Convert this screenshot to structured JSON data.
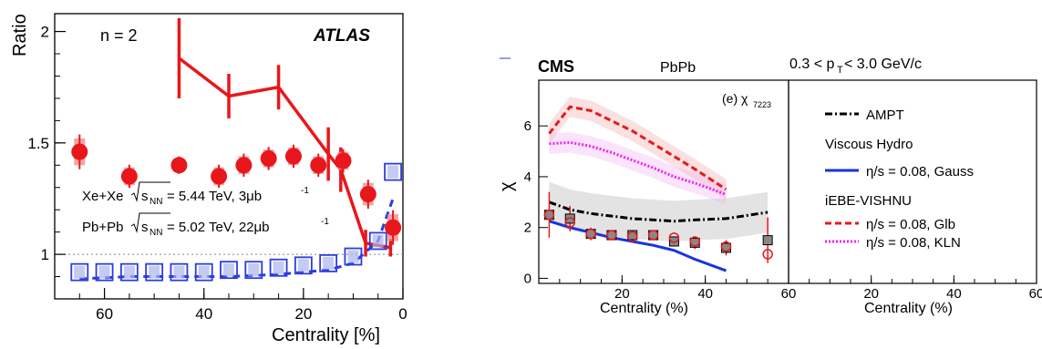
{
  "chart_data": [
    {
      "type": "scatter",
      "panel": "left",
      "experiment": "ATLAS",
      "harmonic_label": "n = 2",
      "ylabel": "Ratio",
      "xlabel": "Centrality [%]",
      "xlim": [
        70,
        0
      ],
      "ylim": [
        0.8,
        2.08
      ],
      "x_ticks": [
        "60",
        "40",
        "20",
        "0"
      ],
      "y_ticks": [
        "1",
        "1.5",
        "2"
      ],
      "reference_line": 1,
      "legend_lines": [
        {
          "prefix": "Xe+Xe",
          "sqrt": "s",
          "sub": "NN",
          "value": " = 5.44 TeV, 3μb",
          "sup": "-1"
        },
        {
          "prefix": "Pb+Pb",
          "sqrt": "s",
          "sub": "NN",
          "value": " = 5.02 TeV, 22μb",
          "sup": "-1"
        }
      ],
      "series": [
        {
          "color": "#e8171b",
          "marker": "circle",
          "x": [
            65,
            55,
            45,
            37,
            32,
            27,
            22,
            17,
            12,
            7,
            2
          ],
          "y": [
            1.46,
            1.35,
            1.4,
            1.35,
            1.4,
            1.43,
            1.44,
            1.4,
            1.42,
            1.27,
            1.12
          ],
          "err": [
            0.06,
            0.04,
            0.03,
            0.04,
            0.04,
            0.04,
            0.04,
            0.04,
            0.04,
            0.05,
            0.06
          ]
        },
        {
          "color": "#e8171b",
          "marker": "line",
          "x": [
            45,
            35,
            25,
            15,
            12.5,
            7.5,
            2.5
          ],
          "y": [
            1.88,
            1.71,
            1.75,
            1.45,
            1.38,
            1.05,
            1.03
          ],
          "err": [
            0.18,
            0.1,
            0.1,
            0.12,
            0.1,
            0.06,
            0.04
          ]
        },
        {
          "color": "#2b3ce0",
          "marker": "open-square",
          "x": [
            65,
            60,
            55,
            50,
            45,
            40,
            35,
            30,
            25,
            20,
            15,
            10,
            5,
            2
          ],
          "y": [
            0.92,
            0.92,
            0.92,
            0.92,
            0.92,
            0.92,
            0.93,
            0.93,
            0.94,
            0.95,
            0.96,
            0.99,
            1.06,
            1.37
          ]
        },
        {
          "color": "#2b3ce0",
          "marker": "dashed-line",
          "x": [
            65,
            55,
            45,
            35,
            25,
            20,
            15,
            10,
            5,
            2
          ],
          "y": [
            0.89,
            0.9,
            0.9,
            0.9,
            0.91,
            0.92,
            0.93,
            0.96,
            1.06,
            1.25
          ]
        }
      ]
    },
    {
      "type": "line",
      "panel": "right",
      "experiment": "CMS",
      "system": "PbPb",
      "pt_range": "0.3 < p",
      "pt_sub": "T",
      "pt_rest": " < 3.0 GeV/c",
      "panel_label": "(e) χ",
      "panel_label_sub": "7223",
      "ylabel": "χ",
      "xlabel": "Centrality (%)",
      "xlim": [
        0,
        60
      ],
      "ylim": [
        -0.2,
        7.8
      ],
      "x_ticks": [
        "20",
        "40",
        "60"
      ],
      "x_ticks_right": [
        "20",
        "40",
        "60"
      ],
      "y_ticks": [
        "0",
        "2",
        "4",
        "6"
      ],
      "legend": {
        "ampt": "AMPT",
        "hydro_title": "Viscous Hydro",
        "hydro": "η/s = 0.08, Gauss",
        "vishnu_title": "iEBE-VISHNU",
        "glb": "η/s = 0.08, Glb",
        "kln": "η/s = 0.08, KLN"
      },
      "colors": {
        "ampt": "#000000",
        "hydro": "#1536e0",
        "glb": "#e8171b",
        "kln": "#ee22ee",
        "data": "#000000",
        "data_alt": "#e8171b"
      },
      "series": [
        {
          "name": "AMPT",
          "x": [
            2.5,
            7.5,
            12.5,
            17.5,
            22.5,
            27.5,
            32.5,
            37.5,
            45,
            55
          ],
          "y": [
            3.0,
            2.7,
            2.55,
            2.45,
            2.35,
            2.3,
            2.25,
            2.3,
            2.35,
            2.6
          ],
          "band": 0.8
        },
        {
          "name": "η/s = 0.08, Gauss",
          "x": [
            2.5,
            7.5,
            12.5,
            17.5,
            22.5,
            27.5,
            32.5,
            37.5,
            45
          ],
          "y": [
            2.25,
            2.0,
            1.8,
            1.6,
            1.45,
            1.3,
            1.1,
            0.75,
            0.3
          ]
        },
        {
          "name": "η/s = 0.08, Glb",
          "x": [
            2.5,
            7.5,
            12.5,
            17.5,
            22.5,
            27.5,
            32.5,
            37.5,
            45
          ],
          "y": [
            5.7,
            6.75,
            6.6,
            6.2,
            5.8,
            5.3,
            4.8,
            4.3,
            3.5
          ],
          "band": 0.4
        },
        {
          "name": "η/s = 0.08, KLN",
          "x": [
            2.5,
            7.5,
            12.5,
            17.5,
            22.5,
            27.5,
            32.5,
            37.5,
            45
          ],
          "y": [
            5.3,
            5.35,
            5.2,
            4.95,
            4.65,
            4.35,
            4.0,
            3.75,
            3.3
          ],
          "band": 0.4
        },
        {
          "name": "data",
          "x": [
            2.5,
            7.5,
            12.5,
            17.5,
            22.5,
            27.5,
            32.5,
            37.5,
            45,
            55
          ],
          "y": [
            2.5,
            2.35,
            1.75,
            1.7,
            1.7,
            1.7,
            1.45,
            1.4,
            1.2,
            1.5
          ],
          "err": [
            0.9,
            0.5,
            0.25,
            0.2,
            0.2,
            0.2,
            0.2,
            0.25,
            0.3,
            0.9
          ]
        },
        {
          "name": "data-alt",
          "x": [
            2.5,
            7.5,
            12.5,
            17.5,
            22.5,
            27.5,
            32.5,
            37.5,
            45,
            55
          ],
          "y": [
            2.5,
            2.2,
            1.75,
            1.7,
            1.65,
            1.7,
            1.6,
            1.45,
            1.25,
            0.95
          ]
        }
      ]
    }
  ]
}
